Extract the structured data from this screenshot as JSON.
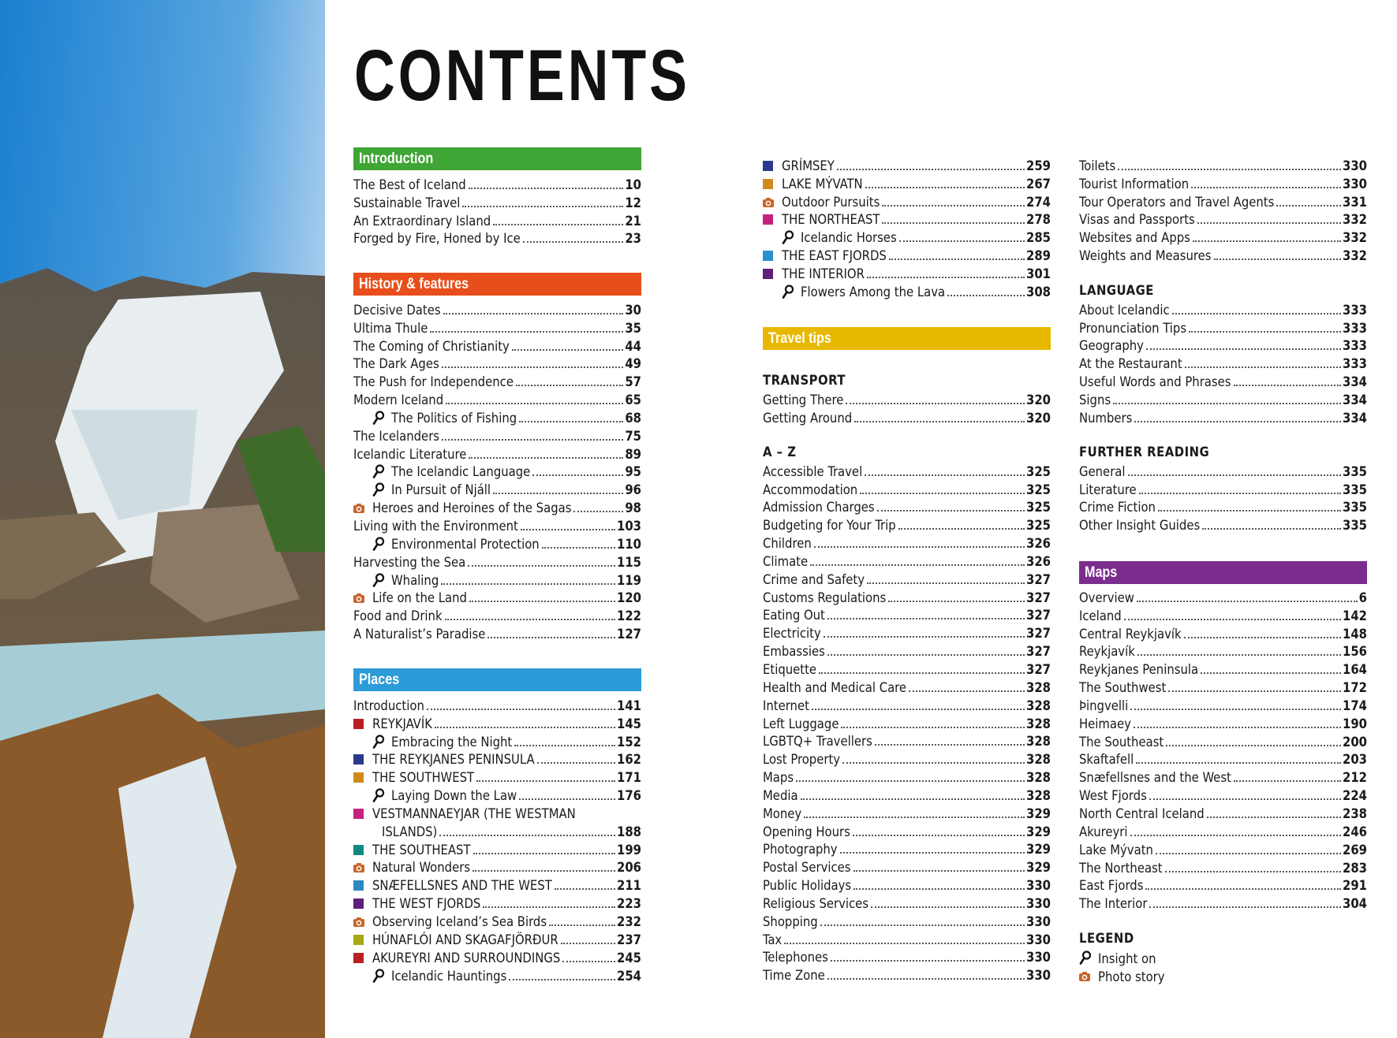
{
  "title": "CONTENTS",
  "colors": {
    "introduction": "#3fa535",
    "history": "#e84e1b",
    "places": "#2d9bd7",
    "travel_tips": "#e8b800",
    "maps": "#7b2d8e",
    "photo_story": "#c8642a"
  },
  "introduction": {
    "header": "Introduction",
    "items": [
      {
        "type": "plain",
        "label": "The Best of Iceland",
        "page": "10"
      },
      {
        "type": "plain",
        "label": "Sustainable Travel",
        "page": "12"
      },
      {
        "type": "plain",
        "label": "An Extraordinary Island",
        "page": "21"
      },
      {
        "type": "plain",
        "label": "Forged by Fire, Honed by Ice",
        "page": "23"
      }
    ]
  },
  "history": {
    "header": "History & features",
    "items": [
      {
        "type": "plain",
        "label": "Decisive Dates",
        "page": "30"
      },
      {
        "type": "plain",
        "label": "Ultima Thule",
        "page": "35"
      },
      {
        "type": "plain",
        "label": "The Coming of Christianity",
        "page": "44"
      },
      {
        "type": "plain",
        "label": "The Dark Ages",
        "page": "49"
      },
      {
        "type": "plain",
        "label": "The Push for Independence",
        "page": "57"
      },
      {
        "type": "plain",
        "label": "Modern Iceland",
        "page": "65"
      },
      {
        "type": "insight",
        "label": "The Politics of Fishing",
        "page": "68"
      },
      {
        "type": "plain",
        "label": "The Icelanders",
        "page": "75"
      },
      {
        "type": "plain",
        "label": "Icelandic Literature",
        "page": "89"
      },
      {
        "type": "insight",
        "label": "The Icelandic Language",
        "page": "95"
      },
      {
        "type": "insight",
        "label": "In Pursuit of Njáll",
        "page": "96"
      },
      {
        "type": "photo",
        "label": "Heroes and Heroines of the Sagas",
        "page": "98"
      },
      {
        "type": "plain",
        "label": "Living with the Environment",
        "page": "103"
      },
      {
        "type": "insight",
        "label": "Environmental Protection",
        "page": "110"
      },
      {
        "type": "plain",
        "label": "Harvesting the Sea",
        "page": "115"
      },
      {
        "type": "insight",
        "label": "Whaling",
        "page": "119"
      },
      {
        "type": "photo",
        "label": "Life on the Land",
        "page": "120"
      },
      {
        "type": "plain",
        "label": "Food and Drink",
        "page": "122"
      },
      {
        "type": "plain",
        "label": "A Naturalist’s Paradise",
        "page": "127"
      }
    ]
  },
  "places": {
    "header": "Places",
    "items": [
      {
        "type": "plain",
        "label": "Introduction",
        "page": "141"
      },
      {
        "type": "square",
        "color": "#b81f25",
        "label": "REYKJAVÍK",
        "page": "145"
      },
      {
        "type": "insight",
        "label": "Embracing the Night",
        "page": "152"
      },
      {
        "type": "square",
        "color": "#2b3990",
        "label": "THE REYKJANES PENINSULA",
        "page": "162"
      },
      {
        "type": "square",
        "color": "#d08a1a",
        "label": "THE SOUTHWEST",
        "page": "171"
      },
      {
        "type": "insight",
        "label": "Laying Down the Law",
        "page": "176"
      },
      {
        "type": "square",
        "color": "#c4227f",
        "label": "VESTMANNAEYJAR (THE WESTMAN",
        "continuation": "ISLANDS)",
        "page": "188"
      },
      {
        "type": "square",
        "color": "#0f8a7e",
        "label": "THE SOUTHEAST",
        "page": "199"
      },
      {
        "type": "photo",
        "label": "Natural Wonders",
        "page": "206"
      },
      {
        "type": "square",
        "color": "#2a88c0",
        "label": "SNÆFELLSNES AND THE WEST",
        "page": "211"
      },
      {
        "type": "square",
        "color": "#5e1f7a",
        "label": "THE WEST FJORDS",
        "page": "223"
      },
      {
        "type": "photo",
        "label": "Observing Iceland’s Sea Birds",
        "page": "232"
      },
      {
        "type": "square",
        "color": "#a8a814",
        "label": "HÚNAFLÓI AND SKAGAFJÖRÐUR",
        "page": "237"
      },
      {
        "type": "square",
        "color": "#b81f25",
        "label": "AKUREYRI AND SURROUNDINGS",
        "page": "245"
      },
      {
        "type": "insight",
        "label": "Icelandic Hauntings",
        "page": "254"
      }
    ]
  },
  "places_cont": {
    "items": [
      {
        "type": "square",
        "color": "#2b3990",
        "label": "GRÍMSEY",
        "page": "259"
      },
      {
        "type": "square",
        "color": "#d08a1a",
        "label": "LAKE MÝVATN",
        "page": "267"
      },
      {
        "type": "photo",
        "label": "Outdoor Pursuits",
        "page": "274"
      },
      {
        "type": "square",
        "color": "#c4227f",
        "label": "THE NORTHEAST",
        "page": "278"
      },
      {
        "type": "insight",
        "label": "Icelandic Horses",
        "page": "285"
      },
      {
        "type": "square",
        "color": "#2a8fcc",
        "label": "THE EAST FJORDS",
        "page": "289"
      },
      {
        "type": "square",
        "color": "#5e1f7a",
        "label": "THE INTERIOR",
        "page": "301"
      },
      {
        "type": "insight",
        "label": "Flowers Among the Lava",
        "page": "308"
      }
    ]
  },
  "travel_tips": {
    "header": "Travel tips",
    "transport": {
      "heading": "TRANSPORT",
      "items": [
        {
          "type": "plain",
          "label": "Getting There",
          "page": "320"
        },
        {
          "type": "plain",
          "label": "Getting Around",
          "page": "320"
        }
      ]
    },
    "a_z": {
      "heading": "A – Z",
      "items": [
        {
          "type": "plain",
          "label": "Accessible Travel",
          "page": "325"
        },
        {
          "type": "plain",
          "label": "Accommodation",
          "page": "325"
        },
        {
          "type": "plain",
          "label": "Admission Charges",
          "page": "325"
        },
        {
          "type": "plain",
          "label": "Budgeting for Your Trip",
          "page": "325"
        },
        {
          "type": "plain",
          "label": "Children",
          "page": "326"
        },
        {
          "type": "plain",
          "label": "Climate",
          "page": "326"
        },
        {
          "type": "plain",
          "label": "Crime and Safety",
          "page": "327"
        },
        {
          "type": "plain",
          "label": "Customs Regulations",
          "page": "327"
        },
        {
          "type": "plain",
          "label": "Eating Out",
          "page": "327"
        },
        {
          "type": "plain",
          "label": "Electricity",
          "page": "327"
        },
        {
          "type": "plain",
          "label": "Embassies",
          "page": "327"
        },
        {
          "type": "plain",
          "label": "Etiquette",
          "page": "327"
        },
        {
          "type": "plain",
          "label": "Health and Medical Care",
          "page": "328"
        },
        {
          "type": "plain",
          "label": "Internet",
          "page": "328"
        },
        {
          "type": "plain",
          "label": "Left Luggage",
          "page": "328"
        },
        {
          "type": "plain",
          "label": "LGBTQ+ Travellers",
          "page": "328"
        },
        {
          "type": "plain",
          "label": "Lost Property",
          "page": "328"
        },
        {
          "type": "plain",
          "label": "Maps",
          "page": "328"
        },
        {
          "type": "plain",
          "label": "Media",
          "page": "328"
        },
        {
          "type": "plain",
          "label": "Money",
          "page": "329"
        },
        {
          "type": "plain",
          "label": "Opening Hours",
          "page": "329"
        },
        {
          "type": "plain",
          "label": "Photography",
          "page": "329"
        },
        {
          "type": "plain",
          "label": "Postal Services",
          "page": "329"
        },
        {
          "type": "plain",
          "label": "Public Holidays",
          "page": "330"
        },
        {
          "type": "plain",
          "label": "Religious Services",
          "page": "330"
        },
        {
          "type": "plain",
          "label": "Shopping",
          "page": "330"
        },
        {
          "type": "plain",
          "label": "Tax",
          "page": "330"
        },
        {
          "type": "plain",
          "label": "Telephones",
          "page": "330"
        },
        {
          "type": "plain",
          "label": "Time Zone",
          "page": "330"
        }
      ]
    },
    "a_z_cont": {
      "items": [
        {
          "type": "plain",
          "label": "Toilets",
          "page": "330"
        },
        {
          "type": "plain",
          "label": "Tourist Information",
          "page": "330"
        },
        {
          "type": "plain",
          "label": "Tour Operators and Travel Agents",
          "page": "331"
        },
        {
          "type": "plain",
          "label": "Visas and Passports",
          "page": "332"
        },
        {
          "type": "plain",
          "label": "Websites and Apps",
          "page": "332"
        },
        {
          "type": "plain",
          "label": "Weights and Measures",
          "page": "332"
        }
      ]
    },
    "language": {
      "heading": "LANGUAGE",
      "items": [
        {
          "type": "plain",
          "label": "About Icelandic",
          "page": "333"
        },
        {
          "type": "plain",
          "label": "Pronunciation Tips",
          "page": "333"
        },
        {
          "type": "plain",
          "label": "Geography",
          "page": "333"
        },
        {
          "type": "plain",
          "label": "At the Restaurant",
          "page": "333"
        },
        {
          "type": "plain",
          "label": "Useful Words and Phrases",
          "page": "334"
        },
        {
          "type": "plain",
          "label": "Signs",
          "page": "334"
        },
        {
          "type": "plain",
          "label": "Numbers",
          "page": "334"
        }
      ]
    },
    "further_reading": {
      "heading": "FURTHER READING",
      "items": [
        {
          "type": "plain",
          "label": "General",
          "page": "335"
        },
        {
          "type": "plain",
          "label": "Literature",
          "page": "335"
        },
        {
          "type": "plain",
          "label": "Crime Fiction",
          "page": "335"
        },
        {
          "type": "plain",
          "label": "Other Insight Guides",
          "page": "335"
        }
      ]
    }
  },
  "maps": {
    "header": "Maps",
    "items": [
      {
        "type": "plain",
        "label": "Overview",
        "page": "6"
      },
      {
        "type": "plain",
        "label": "Iceland",
        "page": "142"
      },
      {
        "type": "plain",
        "label": "Central Reykjavík",
        "page": "148"
      },
      {
        "type": "plain",
        "label": "Reykjavík",
        "page": "156"
      },
      {
        "type": "plain",
        "label": "Reykjanes Peninsula",
        "page": "164"
      },
      {
        "type": "plain",
        "label": "The Southwest",
        "page": "172"
      },
      {
        "type": "plain",
        "label": "Þingvelli",
        "page": "174"
      },
      {
        "type": "plain",
        "label": "Heimaey",
        "page": "190"
      },
      {
        "type": "plain",
        "label": "The Southeast",
        "page": "200"
      },
      {
        "type": "plain",
        "label": "Skaftafell",
        "page": "203"
      },
      {
        "type": "plain",
        "label": "Snæfellsnes and the West",
        "page": "212"
      },
      {
        "type": "plain",
        "label": "West Fjords",
        "page": "224"
      },
      {
        "type": "plain",
        "label": "North Central Iceland",
        "page": "238"
      },
      {
        "type": "plain",
        "label": "Akureyri",
        "page": "246"
      },
      {
        "type": "plain",
        "label": "Lake Mývatn",
        "page": "269"
      },
      {
        "type": "plain",
        "label": "The Northeast",
        "page": "283"
      },
      {
        "type": "plain",
        "label": "East Fjords",
        "page": "291"
      },
      {
        "type": "plain",
        "label": "The Interior",
        "page": "304"
      }
    ]
  },
  "legend": {
    "heading": "LEGEND",
    "insight_label": "Insight on",
    "photo_label": "Photo story",
    "insight_icon": "magnifier-icon",
    "photo_icon": "camera-icon"
  }
}
